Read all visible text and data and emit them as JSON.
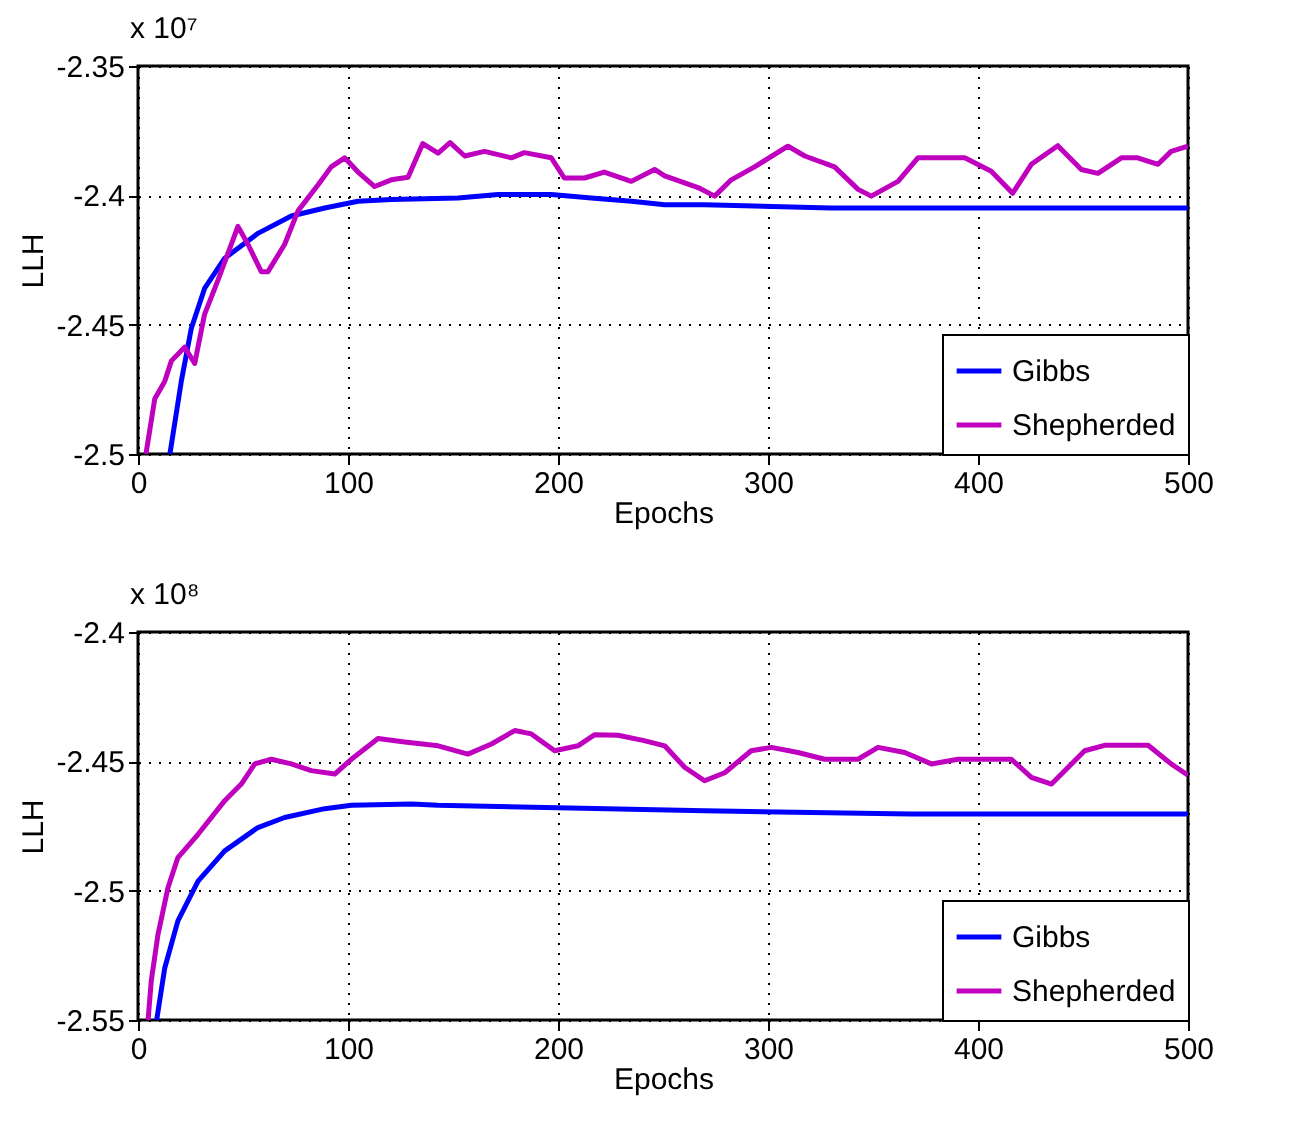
{
  "chart_data": [
    {
      "type": "line",
      "xlabel": "Epochs",
      "ylabel": "LLH",
      "annotations": [
        "x 10⁷"
      ],
      "xlim": [
        0,
        500
      ],
      "xticks": [
        0,
        100,
        200,
        300,
        400,
        500
      ],
      "ylim": [
        -2.5,
        -2.35
      ],
      "yticks": [
        -2.5,
        -2.45,
        -2.4,
        -2.35
      ],
      "grid": true,
      "legend": "bottom right",
      "series": [
        {
          "name": "Gibbs",
          "color": "#0000ff",
          "x": [
            15.2,
            20.6,
            25.4,
            31.7,
            41.3,
            57.1,
            73,
            88.9,
            104.8,
            120.6,
            152.4,
            171.4,
            196.8,
            215.9,
            235,
            250.8,
            269.8,
            330,
            352,
            500
          ],
          "values": [
            -2.5,
            -2.472,
            -2.4514,
            -2.436,
            -2.4243,
            -2.4147,
            -2.408,
            -2.4049,
            -2.4023,
            -2.4016,
            -2.401,
            -2.3997,
            -2.3997,
            -2.401,
            -2.4023,
            -2.4036,
            -2.4036,
            -2.4049,
            -2.4049,
            -2.4049
          ]
        },
        {
          "name": "Shepherded",
          "color": "#bf00bf",
          "x": [
            3.8,
            8,
            12.7,
            15.9,
            22.2,
            27,
            31.7,
            38,
            47.6,
            52.4,
            58.7,
            61.9,
            69.8,
            76.2,
            85.7,
            92,
            98.4,
            104.8,
            112.7,
            120.6,
            128.6,
            135.6,
            142.9,
            148.6,
            155.6,
            165,
            177.8,
            184,
            196.8,
            203,
            212.7,
            222,
            234.9,
            246,
            250.8,
            266.7,
            274.6,
            282.5,
            293.6,
            309.5,
            317.5,
            331.7,
            342.9,
            349.2,
            361.9,
            371.4,
            381,
            393.7,
            406.3,
            416.5,
            425.4,
            438,
            449.2,
            457.1,
            468.3,
            476,
            485.7,
            492,
            500
          ],
          "values": [
            -2.5,
            -2.4786,
            -2.472,
            -2.464,
            -2.4587,
            -2.465,
            -2.446,
            -2.433,
            -2.412,
            -2.419,
            -2.4295,
            -2.4295,
            -2.419,
            -2.406,
            -2.396,
            -2.389,
            -2.3855,
            -2.391,
            -2.3966,
            -2.394,
            -2.393,
            -2.38,
            -2.3837,
            -2.3796,
            -2.3848,
            -2.383,
            -2.3855,
            -2.3835,
            -2.3855,
            -2.3933,
            -2.3933,
            -2.391,
            -2.3946,
            -2.39,
            -2.3925,
            -2.397,
            -2.4003,
            -2.394,
            -2.389,
            -2.381,
            -2.3848,
            -2.389,
            -2.3977,
            -2.4003,
            -2.3946,
            -2.3855,
            -2.3855,
            -2.3855,
            -2.3907,
            -2.3992,
            -2.388,
            -2.3808,
            -2.39,
            -2.3915,
            -2.3855,
            -2.3855,
            -2.388,
            -2.383,
            -2.381
          ]
        }
      ]
    },
    {
      "type": "line",
      "xlabel": "Epochs",
      "ylabel": "LLH",
      "annotations": [
        "x 10⁸"
      ],
      "xlim": [
        0,
        500
      ],
      "xticks": [
        0,
        100,
        200,
        300,
        400,
        500
      ],
      "ylim": [
        -2.55,
        -2.4
      ],
      "yticks": [
        -2.55,
        -2.5,
        -2.45,
        -2.4
      ],
      "grid": true,
      "legend": "bottom right",
      "series": [
        {
          "name": "Gibbs",
          "color": "#0000ff",
          "x": [
            8.9,
            12.7,
            19,
            28.6,
            41.3,
            57.1,
            69.8,
            88.9,
            101.6,
            130.2,
            142.9,
            194,
            269.8,
            368,
            500
          ],
          "values": [
            -2.55,
            -2.53,
            -2.5117,
            -2.4963,
            -2.4846,
            -2.4756,
            -2.4717,
            -2.4683,
            -2.467,
            -2.4665,
            -2.467,
            -2.4678,
            -2.4691,
            -2.4704,
            -2.4704
          ]
        },
        {
          "name": "Shepherded",
          "color": "#bf00bf",
          "x": [
            4.8,
            6.3,
            9.5,
            14.3,
            19,
            28.6,
            41.3,
            49.2,
            55.6,
            63.5,
            73,
            82.5,
            93.7,
            101.6,
            114.3,
            127,
            142.9,
            157.1,
            168.3,
            179.4,
            187.3,
            198.4,
            209.5,
            217.5,
            228.6,
            241,
            250.8,
            260.3,
            269.8,
            279.4,
            292,
            301.6,
            314.3,
            327,
            342.9,
            352.4,
            365.1,
            377.8,
            390.5,
            415.9,
            425.4,
            435,
            450.8,
            460.3,
            481,
            492,
            500
          ],
          "values": [
            -2.55,
            -2.535,
            -2.517,
            -2.4988,
            -2.4872,
            -2.4782,
            -2.4652,
            -2.4588,
            -2.451,
            -2.4492,
            -2.451,
            -2.4536,
            -2.4549,
            -2.4492,
            -2.4412,
            -2.4425,
            -2.444,
            -2.4472,
            -2.4433,
            -2.4381,
            -2.4394,
            -2.4459,
            -2.444,
            -2.4397,
            -2.4399,
            -2.442,
            -2.444,
            -2.4523,
            -2.4575,
            -2.4544,
            -2.4459,
            -2.4446,
            -2.4466,
            -2.4492,
            -2.4492,
            -2.4446,
            -2.4466,
            -2.451,
            -2.4492,
            -2.4492,
            -2.4562,
            -2.4588,
            -2.4459,
            -2.4438,
            -2.4438,
            -2.451,
            -2.4554
          ]
        }
      ]
    }
  ]
}
